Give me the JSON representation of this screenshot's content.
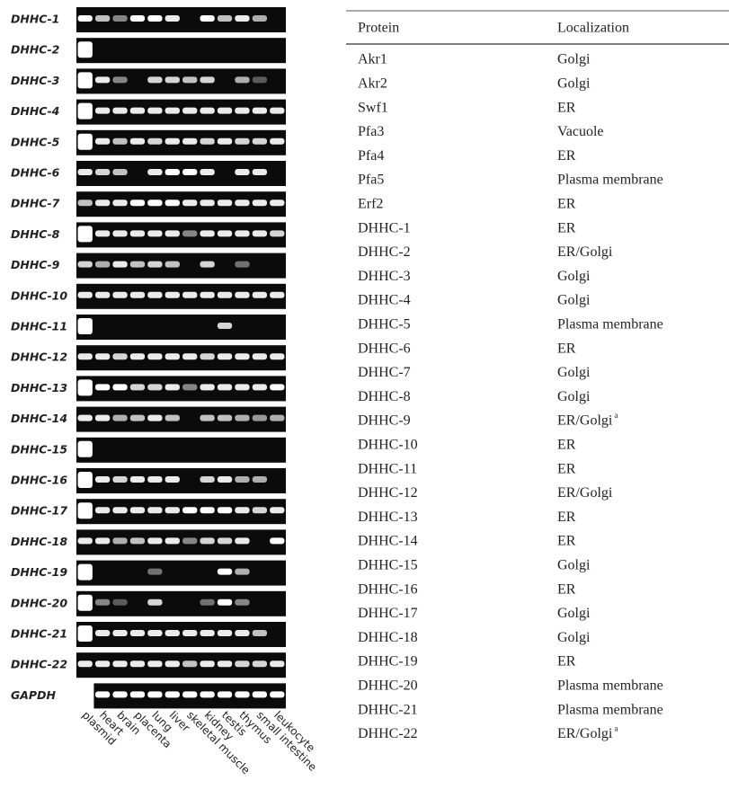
{
  "gel": {
    "rows": [
      "DHHC-1",
      "DHHC-2",
      "DHHC-3",
      "DHHC-4",
      "DHHC-5",
      "DHHC-6",
      "DHHC-7",
      "DHHC-8",
      "DHHC-9",
      "DHHC-10",
      "DHHC-11",
      "DHHC-12",
      "DHHC-13",
      "DHHC-14",
      "DHHC-15",
      "DHHC-16",
      "DHHC-17",
      "DHHC-18",
      "DHHC-19",
      "DHHC-20",
      "DHHC-21",
      "DHHC-22",
      "GAPDH"
    ],
    "lanes": [
      "plasmid",
      "heart",
      "brain",
      "placenta",
      "lung",
      "liver",
      "skeletal muscle",
      "kidney",
      "testis",
      "thymus",
      "small intestine",
      "leukocyte"
    ]
  },
  "table": {
    "header": [
      "Protein",
      "Localization"
    ],
    "rows": [
      {
        "protein": "Akr1",
        "localization": "Golgi"
      },
      {
        "protein": "Akr2",
        "localization": "Golgi"
      },
      {
        "protein": "Swf1",
        "localization": "ER"
      },
      {
        "protein": "Pfa3",
        "localization": "Vacuole"
      },
      {
        "protein": "Pfa4",
        "localization": "ER"
      },
      {
        "protein": "Pfa5",
        "localization": "Plasma membrane"
      },
      {
        "protein": "Erf2",
        "localization": "ER"
      },
      {
        "protein": "DHHC-1",
        "localization": "ER"
      },
      {
        "protein": "DHHC-2",
        "localization": "ER/Golgi"
      },
      {
        "protein": "DHHC-3",
        "localization": "Golgi"
      },
      {
        "protein": "DHHC-4",
        "localization": "Golgi"
      },
      {
        "protein": "DHHC-5",
        "localization": "Plasma membrane"
      },
      {
        "protein": "DHHC-6",
        "localization": "ER"
      },
      {
        "protein": "DHHC-7",
        "localization": "Golgi"
      },
      {
        "protein": "DHHC-8",
        "localization": "Golgi"
      },
      {
        "protein": "DHHC-9",
        "localization": "ER/Golgi",
        "footnote": "a"
      },
      {
        "protein": "DHHC-10",
        "localization": "ER"
      },
      {
        "protein": "DHHC-11",
        "localization": "ER"
      },
      {
        "protein": "DHHC-12",
        "localization": "ER/Golgi"
      },
      {
        "protein": "DHHC-13",
        "localization": "ER"
      },
      {
        "protein": "DHHC-14",
        "localization": "ER"
      },
      {
        "protein": "DHHC-15",
        "localization": "Golgi"
      },
      {
        "protein": "DHHC-16",
        "localization": "ER"
      },
      {
        "protein": "DHHC-17",
        "localization": "Golgi"
      },
      {
        "protein": "DHHC-18",
        "localization": "Golgi"
      },
      {
        "protein": "DHHC-19",
        "localization": "ER"
      },
      {
        "protein": "DHHC-20",
        "localization": "Plasma membrane"
      },
      {
        "protein": "DHHC-21",
        "localization": "Plasma membrane"
      },
      {
        "protein": "DHHC-22",
        "localization": "ER/Golgi",
        "footnote": "a"
      }
    ]
  }
}
